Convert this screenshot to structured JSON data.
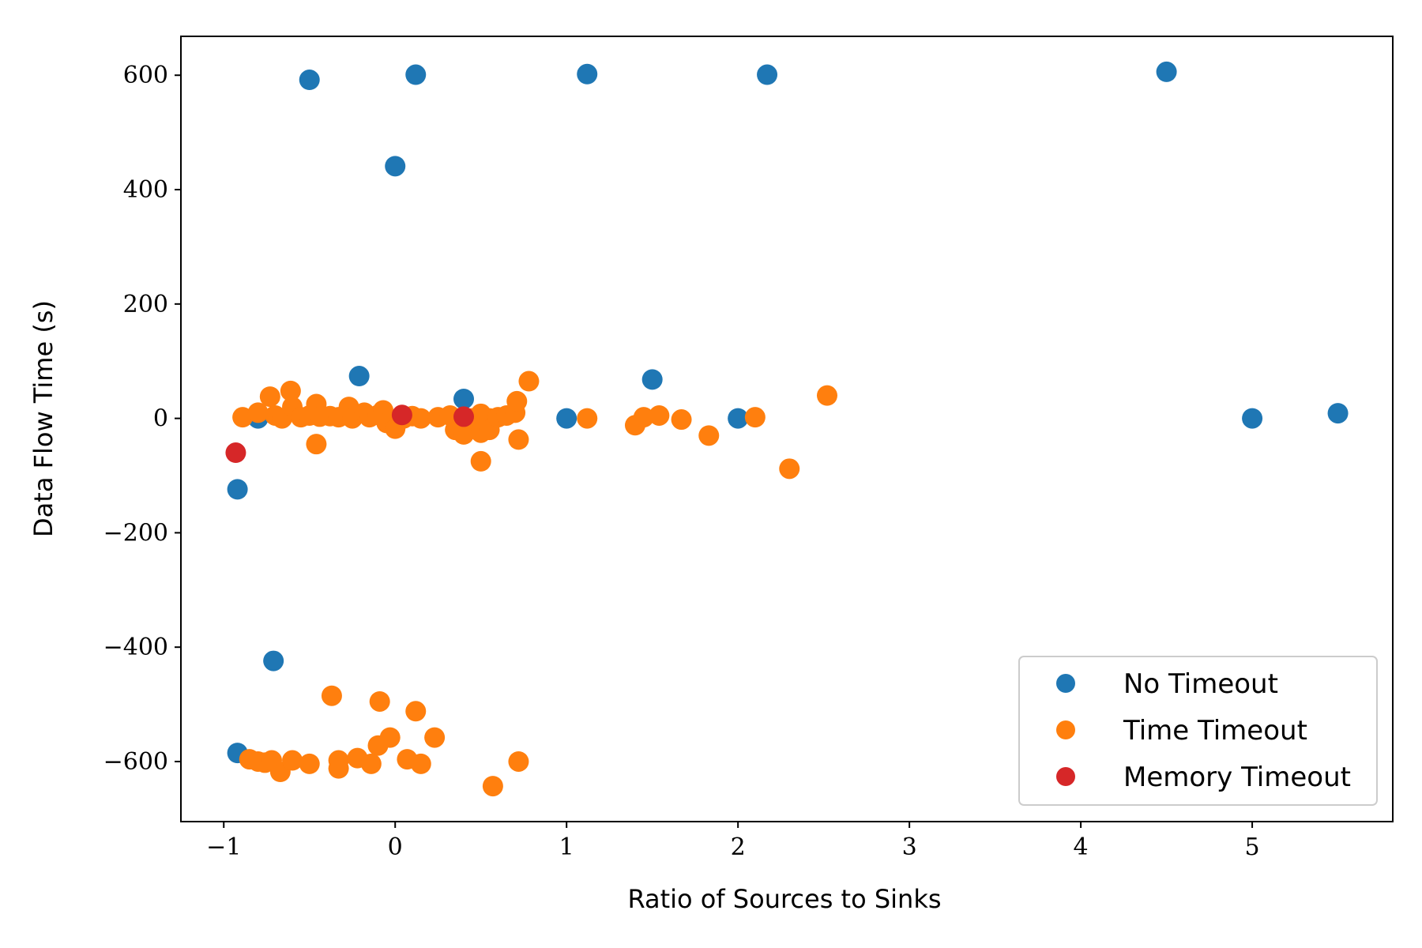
{
  "chart_data": {
    "type": "scatter",
    "title": "",
    "xlabel": "Ratio of Sources to Sinks",
    "ylabel": "Data Flow Time (s)",
    "xlim": [
      -1.25,
      5.82
    ],
    "ylim": [
      -705,
      668
    ],
    "xticks": [
      -1,
      0,
      1,
      2,
      3,
      4,
      5
    ],
    "xtick_labels": [
      "−1",
      "0",
      "1",
      "2",
      "3",
      "4",
      "5"
    ],
    "yticks": [
      600,
      400,
      200,
      0,
      -200,
      -400,
      -600
    ],
    "ytick_labels": [
      "600",
      "400",
      "200",
      "0",
      "−200",
      "−400",
      "−600"
    ],
    "grid": false,
    "legend_position": "bottom-right",
    "series": [
      {
        "name": "No Timeout",
        "color": "#1f77b4",
        "points": [
          [
            -0.5,
            592
          ],
          [
            0.12,
            601
          ],
          [
            1.12,
            602
          ],
          [
            2.17,
            601
          ],
          [
            4.5,
            606
          ],
          [
            0.0,
            441
          ],
          [
            -0.21,
            74
          ],
          [
            0.4,
            34
          ],
          [
            1.5,
            68
          ],
          [
            1.0,
            0
          ],
          [
            2.0,
            0
          ],
          [
            5.0,
            0
          ],
          [
            5.5,
            9
          ],
          [
            -0.8,
            0
          ],
          [
            -0.92,
            -124
          ],
          [
            -0.71,
            -424
          ],
          [
            -0.92,
            -585
          ]
        ]
      },
      {
        "name": "Time Timeout",
        "color": "#ff7f0e",
        "points": [
          [
            -0.89,
            2
          ],
          [
            -0.8,
            10
          ],
          [
            -0.73,
            38
          ],
          [
            -0.7,
            5
          ],
          [
            -0.66,
            0
          ],
          [
            -0.61,
            48
          ],
          [
            -0.6,
            20
          ],
          [
            -0.55,
            2
          ],
          [
            -0.5,
            5
          ],
          [
            -0.46,
            25
          ],
          [
            -0.44,
            3
          ],
          [
            -0.46,
            -45
          ],
          [
            -0.38,
            4
          ],
          [
            -0.33,
            2
          ],
          [
            -0.27,
            20
          ],
          [
            -0.25,
            0
          ],
          [
            -0.18,
            10
          ],
          [
            -0.15,
            2
          ],
          [
            -0.1,
            6
          ],
          [
            -0.07,
            14
          ],
          [
            -0.05,
            -8
          ],
          [
            0.0,
            -18
          ],
          [
            0.05,
            0
          ],
          [
            0.1,
            4
          ],
          [
            0.15,
            0
          ],
          [
            0.25,
            2
          ],
          [
            0.32,
            5
          ],
          [
            0.35,
            -20
          ],
          [
            0.4,
            -28
          ],
          [
            0.45,
            0
          ],
          [
            0.5,
            8
          ],
          [
            0.5,
            -25
          ],
          [
            0.55,
            0
          ],
          [
            0.55,
            -20
          ],
          [
            0.6,
            2
          ],
          [
            0.65,
            5
          ],
          [
            0.7,
            10
          ],
          [
            0.71,
            30
          ],
          [
            0.72,
            -37
          ],
          [
            0.78,
            65
          ],
          [
            0.5,
            -75
          ],
          [
            1.12,
            0
          ],
          [
            1.4,
            -12
          ],
          [
            1.45,
            2
          ],
          [
            1.54,
            5
          ],
          [
            1.67,
            -2
          ],
          [
            1.83,
            -30
          ],
          [
            2.1,
            2
          ],
          [
            2.3,
            -88
          ],
          [
            2.52,
            40
          ],
          [
            -0.37,
            -485
          ],
          [
            -0.09,
            -495
          ],
          [
            0.12,
            -512
          ],
          [
            0.23,
            -558
          ],
          [
            -0.1,
            -572
          ],
          [
            -0.03,
            -558
          ],
          [
            -0.85,
            -596
          ],
          [
            -0.8,
            -600
          ],
          [
            -0.76,
            -602
          ],
          [
            -0.72,
            -598
          ],
          [
            -0.67,
            -618
          ],
          [
            -0.6,
            -598
          ],
          [
            -0.5,
            -604
          ],
          [
            -0.33,
            -598
          ],
          [
            -0.33,
            -612
          ],
          [
            -0.22,
            -594
          ],
          [
            -0.14,
            -604
          ],
          [
            0.07,
            -596
          ],
          [
            0.15,
            -604
          ],
          [
            0.57,
            -643
          ],
          [
            0.72,
            -600
          ]
        ]
      },
      {
        "name": "Memory Timeout",
        "color": "#d62728",
        "points": [
          [
            -0.93,
            -60
          ],
          [
            0.04,
            6
          ],
          [
            0.4,
            3
          ]
        ]
      }
    ]
  }
}
